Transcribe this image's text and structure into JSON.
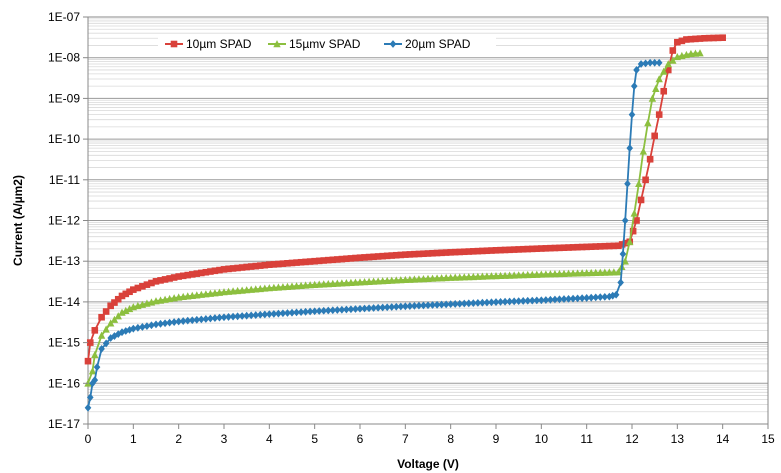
{
  "chart_data": {
    "type": "line",
    "title": "",
    "xlabel": "Voltage (V)",
    "ylabel": "Current (A/µm2)",
    "xlim": [
      0,
      15
    ],
    "xticks": [
      "0",
      "1",
      "2",
      "3",
      "4",
      "5",
      "6",
      "7",
      "8",
      "9",
      "10",
      "11",
      "12",
      "13",
      "14",
      "15"
    ],
    "ylim_log10": [
      -17,
      -7
    ],
    "yticks": [
      "1E-17",
      "1E-16",
      "1E-15",
      "1E-14",
      "1E-13",
      "1E-12",
      "1E-11",
      "1E-10",
      "1E-09",
      "1E-08",
      "1E-07"
    ],
    "y_scale": "log",
    "grid": "major and minor",
    "legend": "top, inside plot",
    "series": [
      {
        "name": "10µm SPAD",
        "color": "#d9413a",
        "marker": "square",
        "points": [
          [
            0.0,
            3.5e-16
          ],
          [
            0.05,
            1e-15
          ],
          [
            0.15,
            2e-15
          ],
          [
            0.3,
            4.2e-15
          ],
          [
            0.5,
            8e-15
          ],
          [
            0.75,
            1.4e-14
          ],
          [
            1.0,
            2e-14
          ],
          [
            1.5,
            3.2e-14
          ],
          [
            2.0,
            4.2e-14
          ],
          [
            3.0,
            6.3e-14
          ],
          [
            4.0,
            8.2e-14
          ],
          [
            5.0,
            1e-13
          ],
          [
            6.0,
            1.22e-13
          ],
          [
            7.0,
            1.45e-13
          ],
          [
            8.0,
            1.65e-13
          ],
          [
            9.0,
            1.85e-13
          ],
          [
            10.0,
            2.05e-13
          ],
          [
            11.0,
            2.25e-13
          ],
          [
            11.7,
            2.4e-13
          ],
          [
            11.95,
            3e-13
          ],
          [
            12.1,
            1e-12
          ],
          [
            12.2,
            3.2e-12
          ],
          [
            12.3,
            1e-11
          ],
          [
            12.4,
            3.2e-11
          ],
          [
            12.5,
            1.2e-10
          ],
          [
            12.6,
            4e-10
          ],
          [
            12.7,
            1.5e-09
          ],
          [
            12.8,
            5e-09
          ],
          [
            12.9,
            1.5e-08
          ],
          [
            13.0,
            2.4e-08
          ],
          [
            13.2,
            2.8e-08
          ],
          [
            13.6,
            3e-08
          ],
          [
            14.0,
            3.1e-08
          ]
        ]
      },
      {
        "name": "15µmv SPAD",
        "color": "#8cbf3f",
        "marker": "triangle",
        "points": [
          [
            0.0,
            1e-16
          ],
          [
            0.1,
            2e-16
          ],
          [
            0.15,
            5e-16
          ],
          [
            0.3,
            1.5e-15
          ],
          [
            0.5,
            3e-15
          ],
          [
            0.75,
            5.5e-15
          ],
          [
            1.0,
            7.5e-15
          ],
          [
            1.5,
            1.05e-14
          ],
          [
            2.0,
            1.3e-14
          ],
          [
            3.0,
            1.75e-14
          ],
          [
            4.0,
            2.2e-14
          ],
          [
            5.0,
            2.65e-14
          ],
          [
            6.0,
            3.05e-14
          ],
          [
            7.0,
            3.5e-14
          ],
          [
            8.0,
            3.95e-14
          ],
          [
            9.0,
            4.35e-14
          ],
          [
            10.0,
            4.75e-14
          ],
          [
            11.0,
            5.15e-14
          ],
          [
            11.7,
            5.4e-14
          ],
          [
            11.85,
            1e-13
          ],
          [
            11.95,
            3e-13
          ],
          [
            12.05,
            1.5e-12
          ],
          [
            12.15,
            8e-12
          ],
          [
            12.25,
            5e-11
          ],
          [
            12.35,
            2.5e-10
          ],
          [
            12.45,
            1e-09
          ],
          [
            12.6,
            3e-09
          ],
          [
            12.8,
            7e-09
          ],
          [
            13.0,
            1.05e-08
          ],
          [
            13.3,
            1.25e-08
          ],
          [
            13.5,
            1.3e-08
          ]
        ]
      },
      {
        "name": "20µm SPAD",
        "color": "#2c7bb6",
        "marker": "diamond",
        "points": [
          [
            0.0,
            2.5e-17
          ],
          [
            0.05,
            4.5e-17
          ],
          [
            0.1,
            1e-16
          ],
          [
            0.15,
            1.2e-16
          ],
          [
            0.2,
            2.5e-16
          ],
          [
            0.3,
            7e-16
          ],
          [
            0.5,
            1.3e-15
          ],
          [
            0.75,
            1.8e-15
          ],
          [
            1.0,
            2.2e-15
          ],
          [
            1.5,
            2.8e-15
          ],
          [
            2.0,
            3.3e-15
          ],
          [
            3.0,
            4.2e-15
          ],
          [
            4.0,
            5e-15
          ],
          [
            5.0,
            5.9e-15
          ],
          [
            6.0,
            6.8e-15
          ],
          [
            7.0,
            7.8e-15
          ],
          [
            8.0,
            8.8e-15
          ],
          [
            9.0,
            9.9e-15
          ],
          [
            10.0,
            1.1e-14
          ],
          [
            11.0,
            1.25e-14
          ],
          [
            11.5,
            1.35e-14
          ],
          [
            11.65,
            1.5e-14
          ],
          [
            11.75,
            3e-14
          ],
          [
            11.8,
            1.5e-13
          ],
          [
            11.85,
            1e-12
          ],
          [
            11.9,
            8e-12
          ],
          [
            11.95,
            6e-11
          ],
          [
            12.0,
            4e-10
          ],
          [
            12.05,
            2e-09
          ],
          [
            12.1,
            5e-09
          ],
          [
            12.2,
            7e-09
          ],
          [
            12.4,
            7.5e-09
          ],
          [
            12.6,
            7.5e-09
          ]
        ]
      }
    ]
  }
}
